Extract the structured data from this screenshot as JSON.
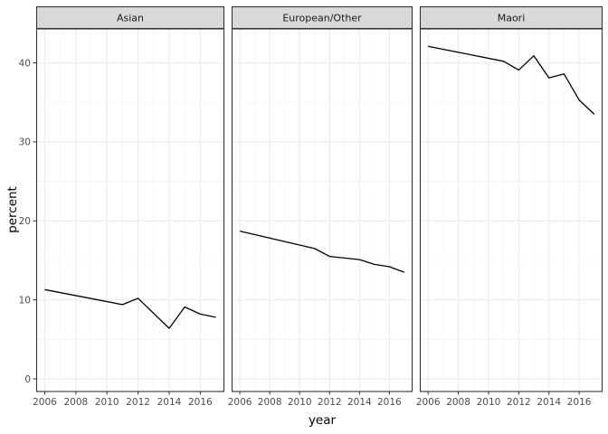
{
  "chart_data": {
    "type": "line",
    "xlabel": "year",
    "ylabel": "percent",
    "x_ticks": [
      2006,
      2008,
      2010,
      2012,
      2014,
      2016
    ],
    "y_ticks": [
      0,
      10,
      20,
      30,
      40
    ],
    "xlim": [
      2005.45,
      2017.55
    ],
    "ylim": [
      -1.6,
      44.3
    ],
    "grid": true,
    "line_color": "#000000",
    "strip_fill": "#d9d9d9",
    "panels": [
      {
        "name": "Asian",
        "x": [
          2006,
          2011,
          2012,
          2014,
          2015,
          2016,
          2017
        ],
        "y": [
          11.3,
          9.4,
          10.2,
          6.4,
          9.1,
          8.2,
          7.8
        ]
      },
      {
        "name": "European/Other",
        "x": [
          2006,
          2011,
          2012,
          2014,
          2015,
          2016,
          2017
        ],
        "y": [
          18.7,
          16.5,
          15.5,
          15.1,
          14.5,
          14.2,
          13.5
        ]
      },
      {
        "name": "Maori",
        "x": [
          2006,
          2011,
          2012,
          2013,
          2014,
          2015,
          2016,
          2017
        ],
        "y": [
          42.1,
          40.2,
          39.1,
          40.9,
          38.1,
          38.6,
          35.3,
          33.5
        ]
      }
    ]
  }
}
